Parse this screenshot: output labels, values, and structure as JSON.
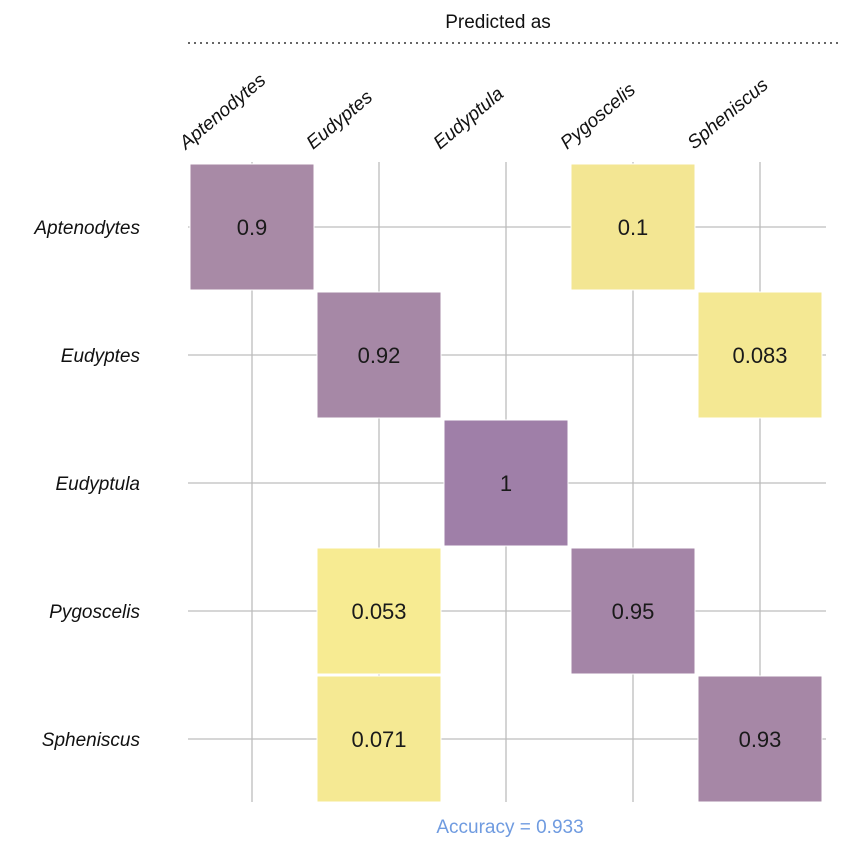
{
  "chart_data": {
    "type": "heatmap",
    "xlabel": "Predicted as",
    "ylabel": "",
    "x_categories": [
      "Aptenodytes",
      "Eudyptes",
      "Eudyptula",
      "Pygoscelis",
      "Spheniscus"
    ],
    "y_categories": [
      "Aptenodytes",
      "Eudyptes",
      "Eudyptula",
      "Pygoscelis",
      "Spheniscus"
    ],
    "cells": [
      {
        "row": 0,
        "col": 0,
        "value": 0.9,
        "label": "0.9"
      },
      {
        "row": 0,
        "col": 3,
        "value": 0.1,
        "label": "0.1"
      },
      {
        "row": 1,
        "col": 1,
        "value": 0.92,
        "label": "0.92"
      },
      {
        "row": 1,
        "col": 4,
        "value": 0.083,
        "label": "0.083"
      },
      {
        "row": 2,
        "col": 2,
        "value": 1,
        "label": "1"
      },
      {
        "row": 3,
        "col": 1,
        "value": 0.053,
        "label": "0.053"
      },
      {
        "row": 3,
        "col": 3,
        "value": 0.95,
        "label": "0.95"
      },
      {
        "row": 4,
        "col": 1,
        "value": 0.071,
        "label": "0.071"
      },
      {
        "row": 4,
        "col": 4,
        "value": 0.93,
        "label": "0.93"
      }
    ],
    "color_low": "#fcf191",
    "color_high": "#9f7fa8",
    "grid": true,
    "caption": "Accuracy = 0.933",
    "caption_color": "#6f9be0"
  }
}
